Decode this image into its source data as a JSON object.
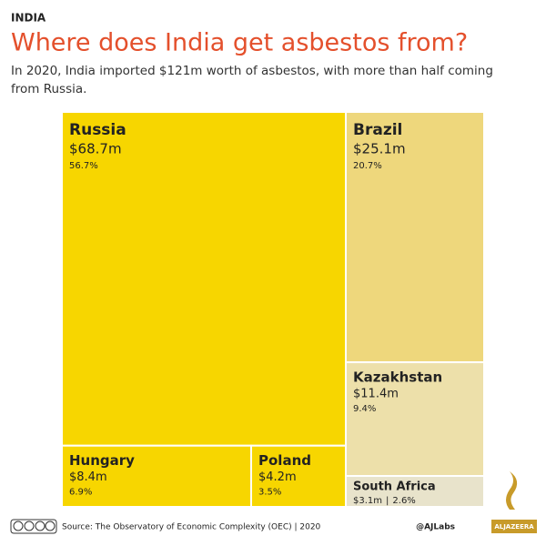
{
  "chart_data": {
    "type": "treemap",
    "kicker": "INDIA",
    "title": "Where does India get asbestos from?",
    "subtitle": "In 2020, India imported $121m worth of asbestos, with more than half coming from Russia.",
    "categories": [
      "Russia",
      "Hungary",
      "Poland",
      "Brazil",
      "Kazakhstan",
      "South Africa"
    ],
    "values": [
      68.7,
      8.4,
      4.2,
      25.1,
      11.4,
      3.1
    ],
    "value_labels": [
      "$68.7m",
      "$8.4m",
      "$4.2m",
      "$25.1m",
      "$11.4m",
      "$3.1m"
    ],
    "share_labels": [
      "56.7%",
      "6.9%",
      "3.5%",
      "20.7%",
      "9.4%",
      "2.6%"
    ],
    "separator": "|",
    "colors": [
      "#f7d600",
      "#f7d600",
      "#f7d600",
      "#eed77c",
      "#ede0aa",
      "#e8e3cb"
    ],
    "source": "Source: The Observatory of Economic Complexity (OEC)  |  2020",
    "credit": "@AJLabs",
    "brand": "ALJAZEERA"
  }
}
